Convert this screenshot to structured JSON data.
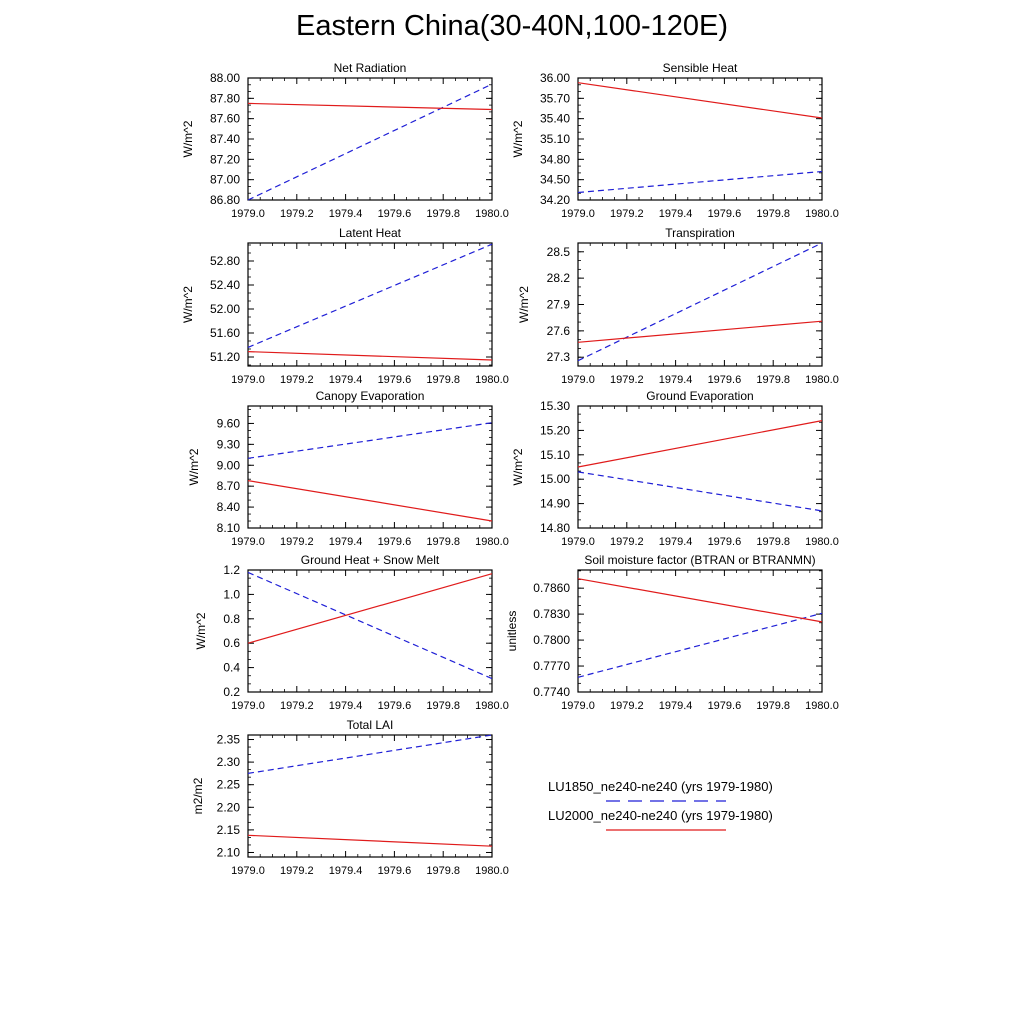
{
  "title": "Eastern China(30-40N,100-120E)",
  "legend": {
    "entries": [
      {
        "label": "LU1850_ne240-ne240 (yrs 1979-1980)",
        "color": "#1f1fd6",
        "dash": true
      },
      {
        "label": "LU2000_ne240-ne240 (yrs 1979-1980)",
        "color": "#e01b1b",
        "dash": false
      }
    ]
  },
  "chart_data": [
    {
      "type": "line",
      "title": "Net Radiation",
      "ylabel": "W/m^2",
      "x": [
        1979.0,
        1980.0
      ],
      "xlim": [
        1979.0,
        1980.0
      ],
      "xticks": [
        "1979.0",
        "1979.2",
        "1979.4",
        "1979.6",
        "1979.8",
        "1980.0"
      ],
      "ylim": [
        86.8,
        88.0
      ],
      "yticks": [
        "86.80",
        "87.00",
        "87.20",
        "87.40",
        "87.60",
        "87.80",
        "88.00"
      ],
      "series": [
        {
          "name": "LU1850_ne240-ne240 (yrs 1979-1980)",
          "values": [
            86.8,
            87.94
          ]
        },
        {
          "name": "LU2000_ne240-ne240 (yrs 1979-1980)",
          "values": [
            87.75,
            87.69
          ]
        }
      ]
    },
    {
      "type": "line",
      "title": "Sensible Heat",
      "ylabel": "W/m^2",
      "x": [
        1979.0,
        1980.0
      ],
      "xlim": [
        1979.0,
        1980.0
      ],
      "xticks": [
        "1979.0",
        "1979.2",
        "1979.4",
        "1979.6",
        "1979.8",
        "1980.0"
      ],
      "ylim": [
        34.2,
        36.0
      ],
      "yticks": [
        "34.20",
        "34.50",
        "34.80",
        "35.10",
        "35.40",
        "35.70",
        "36.00"
      ],
      "series": [
        {
          "name": "LU1850_ne240-ne240 (yrs 1979-1980)",
          "values": [
            34.31,
            34.62
          ]
        },
        {
          "name": "LU2000_ne240-ne240 (yrs 1979-1980)",
          "values": [
            35.93,
            35.41
          ]
        }
      ]
    },
    {
      "type": "line",
      "title": "Latent Heat",
      "ylabel": "W/m^2",
      "x": [
        1979.0,
        1980.0
      ],
      "xlim": [
        1979.0,
        1980.0
      ],
      "xticks": [
        "1979.0",
        "1979.2",
        "1979.4",
        "1979.6",
        "1979.8",
        "1980.0"
      ],
      "ylim": [
        51.05,
        53.1
      ],
      "yticks": [
        "51.20",
        "51.60",
        "52.00",
        "52.40",
        "52.80"
      ],
      "series": [
        {
          "name": "LU1850_ne240-ne240 (yrs 1979-1980)",
          "values": [
            51.36,
            53.08
          ]
        },
        {
          "name": "LU2000_ne240-ne240 (yrs 1979-1980)",
          "values": [
            51.29,
            51.15
          ]
        }
      ]
    },
    {
      "type": "line",
      "title": "Transpiration",
      "ylabel": "W/m^2",
      "x": [
        1979.0,
        1980.0
      ],
      "xlim": [
        1979.0,
        1980.0
      ],
      "xticks": [
        "1979.0",
        "1979.2",
        "1979.4",
        "1979.6",
        "1979.8",
        "1980.0"
      ],
      "ylim": [
        27.2,
        28.6
      ],
      "yticks": [
        "27.3",
        "27.6",
        "27.9",
        "28.2",
        "28.5"
      ],
      "series": [
        {
          "name": "LU1850_ne240-ne240 (yrs 1979-1980)",
          "values": [
            27.26,
            28.6
          ]
        },
        {
          "name": "LU2000_ne240-ne240 (yrs 1979-1980)",
          "values": [
            27.47,
            27.71
          ]
        }
      ]
    },
    {
      "type": "line",
      "title": "Canopy Evaporation",
      "ylabel": "W/m^2",
      "x": [
        1979.0,
        1980.0
      ],
      "xlim": [
        1979.0,
        1980.0
      ],
      "xticks": [
        "1979.0",
        "1979.2",
        "1979.4",
        "1979.6",
        "1979.8",
        "1980.0"
      ],
      "ylim": [
        8.1,
        9.85
      ],
      "yticks": [
        "8.10",
        "8.40",
        "8.70",
        "9.00",
        "9.30",
        "9.60"
      ],
      "series": [
        {
          "name": "LU1850_ne240-ne240 (yrs 1979-1980)",
          "values": [
            9.1,
            9.61
          ]
        },
        {
          "name": "LU2000_ne240-ne240 (yrs 1979-1980)",
          "values": [
            8.78,
            8.2
          ]
        }
      ]
    },
    {
      "type": "line",
      "title": "Ground Evaporation",
      "ylabel": "W/m^2",
      "x": [
        1979.0,
        1980.0
      ],
      "xlim": [
        1979.0,
        1980.0
      ],
      "xticks": [
        "1979.0",
        "1979.2",
        "1979.4",
        "1979.6",
        "1979.8",
        "1980.0"
      ],
      "ylim": [
        14.8,
        15.3
      ],
      "yticks": [
        "14.80",
        "14.90",
        "15.00",
        "15.10",
        "15.20",
        "15.30"
      ],
      "series": [
        {
          "name": "LU1850_ne240-ne240 (yrs 1979-1980)",
          "values": [
            15.03,
            14.87
          ]
        },
        {
          "name": "LU2000_ne240-ne240 (yrs 1979-1980)",
          "values": [
            15.05,
            15.24
          ]
        }
      ]
    },
    {
      "type": "line",
      "title": "Ground Heat + Snow Melt",
      "ylabel": "W/m^2",
      "x": [
        1979.0,
        1980.0
      ],
      "xlim": [
        1979.0,
        1980.0
      ],
      "xticks": [
        "1979.0",
        "1979.2",
        "1979.4",
        "1979.6",
        "1979.8",
        "1980.0"
      ],
      "ylim": [
        0.2,
        1.2
      ],
      "yticks": [
        "0.2",
        "0.4",
        "0.6",
        "0.8",
        "1.0",
        "1.2"
      ],
      "series": [
        {
          "name": "LU1850_ne240-ne240 (yrs 1979-1980)",
          "values": [
            1.18,
            0.31
          ]
        },
        {
          "name": "LU2000_ne240-ne240 (yrs 1979-1980)",
          "values": [
            0.6,
            1.17
          ]
        }
      ]
    },
    {
      "type": "line",
      "title": "Soil moisture factor (BTRAN or BTRANMN)",
      "ylabel": "unitless",
      "x": [
        1979.0,
        1980.0
      ],
      "xlim": [
        1979.0,
        1980.0
      ],
      "xticks": [
        "1979.0",
        "1979.2",
        "1979.4",
        "1979.6",
        "1979.8",
        "1980.0"
      ],
      "ylim": [
        0.774,
        0.7881
      ],
      "yticks": [
        "0.7740",
        "0.7770",
        "0.7800",
        "0.7830",
        "0.7860"
      ],
      "series": [
        {
          "name": "LU1850_ne240-ne240 (yrs 1979-1980)",
          "values": [
            0.7757,
            0.7831
          ]
        },
        {
          "name": "LU2000_ne240-ne240 (yrs 1979-1980)",
          "values": [
            0.7871,
            0.7821
          ]
        }
      ]
    },
    {
      "type": "line",
      "title": "Total LAI",
      "ylabel": "m2/m2",
      "x": [
        1979.0,
        1980.0
      ],
      "xlim": [
        1979.0,
        1980.0
      ],
      "xticks": [
        "1979.0",
        "1979.2",
        "1979.4",
        "1979.6",
        "1979.8",
        "1980.0"
      ],
      "ylim": [
        2.09,
        2.36
      ],
      "yticks": [
        "2.10",
        "2.15",
        "2.20",
        "2.25",
        "2.30",
        "2.35"
      ],
      "series": [
        {
          "name": "LU1850_ne240-ne240 (yrs 1979-1980)",
          "values": [
            2.275,
            2.36
          ]
        },
        {
          "name": "LU2000_ne240-ne240 (yrs 1979-1980)",
          "values": [
            2.138,
            2.114
          ]
        }
      ]
    }
  ]
}
